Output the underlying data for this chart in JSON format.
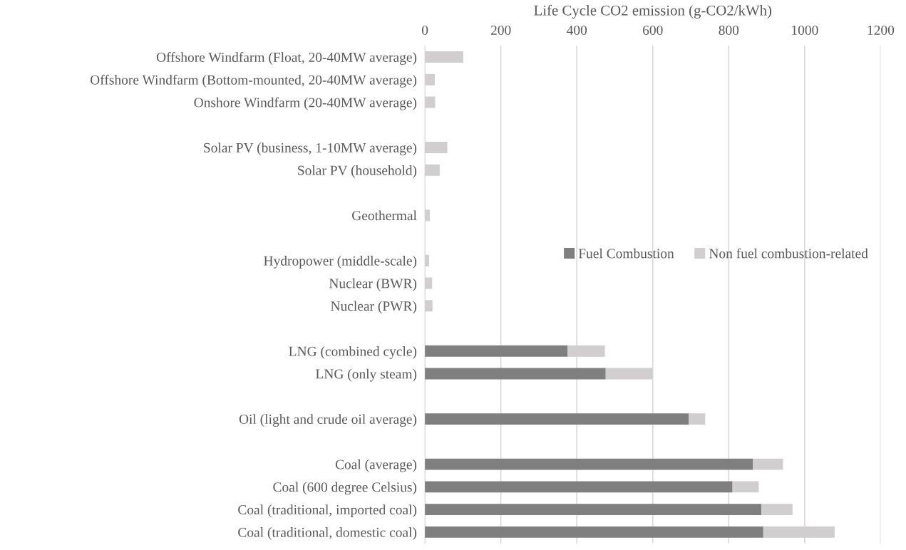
{
  "chart_data": {
    "type": "bar",
    "orientation": "horizontal",
    "stacked": true,
    "xlabel": "Life Cycle CO2 emission (g-CO2/kWh)",
    "categories": [
      "Offshore Windfarm (Float, 20-40MW average)",
      "Offshore Windfarm (Bottom-mounted, 20-40MW average)",
      "Onshore Windfarm (20-40MW average)",
      null,
      "Solar PV (business, 1-10MW average)",
      "Solar PV (household)",
      null,
      "Geothermal",
      null,
      "Hydropower (middle-scale)",
      "Nuclear (BWR)",
      "Nuclear (PWR)",
      null,
      "LNG (combined cycle)",
      "LNG (only steam)",
      null,
      "Oil (light and crude oil average)",
      null,
      "Coal (average)",
      "Coal (600 degree Celsius)",
      "Coal (traditional, imported coal)",
      "Coal (traditional, domestic coal)"
    ],
    "series": [
      {
        "name": "Fuel Combustion",
        "color": "#7f7f7f",
        "values": [
          0,
          0,
          0,
          null,
          0,
          0,
          null,
          0,
          null,
          0,
          0,
          0,
          null,
          376,
          476,
          null,
          695,
          null,
          864,
          810,
          886,
          891
        ]
      },
      {
        "name": "Non fuel combustion-related",
        "color": "#d0cece",
        "values": [
          101,
          26,
          27,
          null,
          59,
          39,
          null,
          13,
          null,
          11,
          19,
          20,
          null,
          98,
          123,
          null,
          43,
          null,
          79,
          69,
          82,
          188
        ]
      }
    ],
    "xlim": [
      0,
      1200
    ],
    "xticks": [
      0,
      200,
      400,
      600,
      800,
      1000,
      1200
    ],
    "grid": "x",
    "legend": "right"
  }
}
